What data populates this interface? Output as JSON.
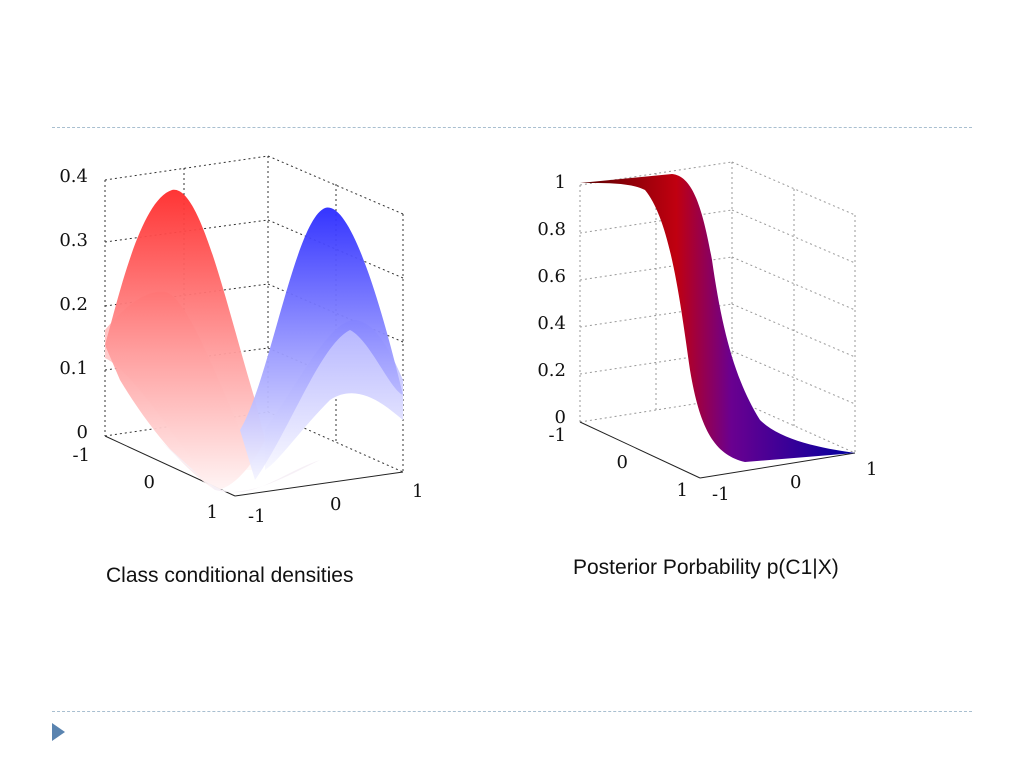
{
  "captions": {
    "left": "Class conditional densities",
    "right": "Posterior Porbability p(C1|X)"
  },
  "colors": {
    "class1": "#ff0000",
    "class2": "#0000ff",
    "grid": "#333333",
    "rule": "#a9bfd0",
    "bullet": "#5a84b0"
  },
  "chart_data": [
    {
      "type": "surface3d",
      "name": "class-conditional-densities",
      "title": "",
      "x_ticks": [
        "-1",
        "0",
        "1"
      ],
      "y_ticks": [
        "-1",
        "0",
        "1"
      ],
      "z_ticks": [
        "0",
        "0.1",
        "0.2",
        "0.3",
        "0.4"
      ],
      "zlim": [
        0,
        0.4
      ],
      "series": [
        {
          "color": "#ff0000",
          "peak_x": -0.6,
          "peak_value": 0.4,
          "width_sigma": 0.3
        },
        {
          "color": "#0000ff",
          "peak_x": 0.6,
          "peak_value": 0.36,
          "width_sigma": 0.3
        }
      ],
      "grid": true
    },
    {
      "type": "surface3d",
      "name": "posterior-probability",
      "title": "",
      "x_ticks": [
        "-1",
        "0",
        "1"
      ],
      "y_ticks": [
        "-1",
        "0",
        "1"
      ],
      "z_ticks": [
        "0",
        "0.2",
        "0.4",
        "0.6",
        "0.8",
        "1"
      ],
      "zlim": [
        0,
        1
      ],
      "function": "logistic",
      "midpoint_x": 0,
      "value_at_x_min": 1,
      "value_at_x_max": 0,
      "colors": [
        "#5a0000",
        "#c00000",
        "#0000a0"
      ],
      "grid": true
    }
  ]
}
